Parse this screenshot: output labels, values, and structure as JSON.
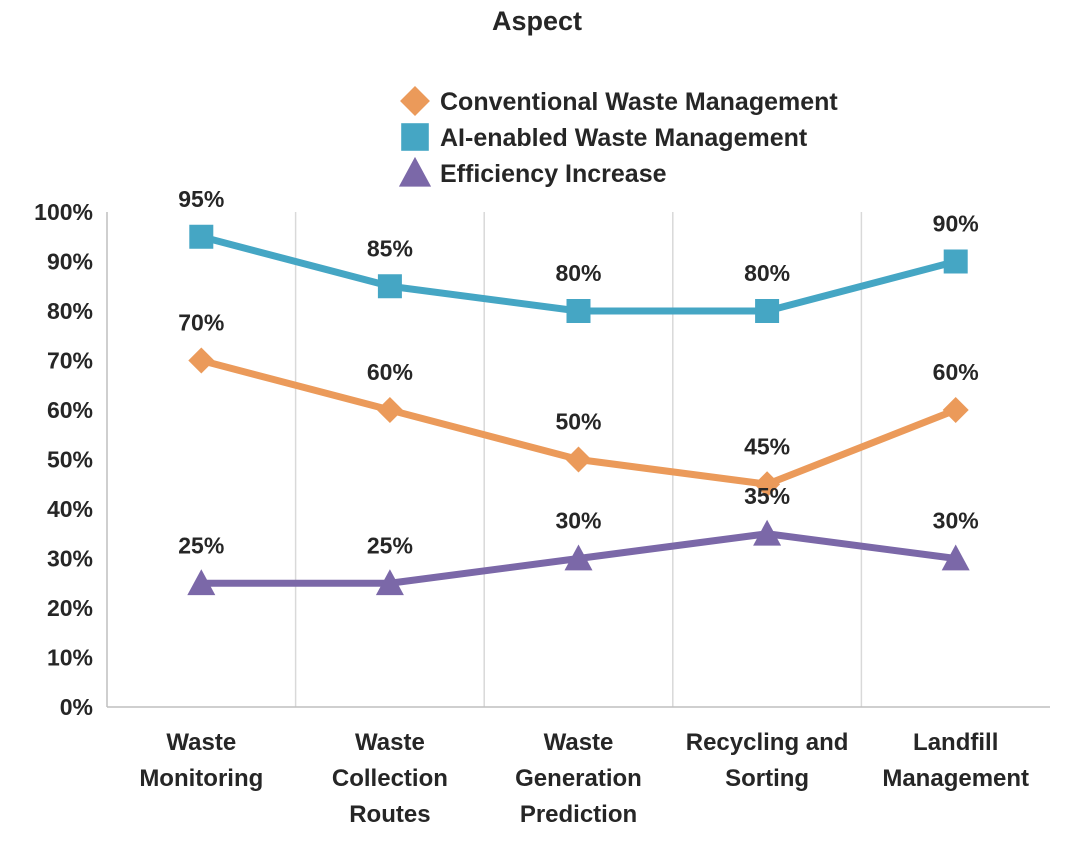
{
  "chart_data": {
    "type": "line",
    "title": "Aspect",
    "xlabel": "",
    "ylabel": "",
    "categories": [
      [
        "Waste",
        "Monitoring"
      ],
      [
        "Waste",
        "Collection",
        "Routes"
      ],
      [
        "Waste",
        "Generation",
        "Prediction"
      ],
      [
        "Recycling and",
        "Sorting"
      ],
      [
        "Landfill",
        "Management"
      ]
    ],
    "ylim": [
      0,
      100
    ],
    "yticks": [
      "0%",
      "10%",
      "20%",
      "30%",
      "40%",
      "50%",
      "60%",
      "70%",
      "80%",
      "90%",
      "100%"
    ],
    "grid": "vertical",
    "legend_position": "top",
    "series": [
      {
        "name": "Conventional Waste Management",
        "color": "#EB9A5A",
        "marker": "diamond",
        "values": [
          70,
          60,
          50,
          45,
          60
        ],
        "labels": [
          "70%",
          "60%",
          "50%",
          "45%",
          "60%"
        ]
      },
      {
        "name": "AI-enabled Waste Management",
        "color": "#45A6C4",
        "marker": "square",
        "values": [
          95,
          85,
          80,
          80,
          90
        ],
        "labels": [
          "95%",
          "85%",
          "80%",
          "80%",
          "90%"
        ]
      },
      {
        "name": "Efficiency Increase",
        "color": "#7B68A8",
        "marker": "triangle",
        "values": [
          25,
          25,
          30,
          35,
          30
        ],
        "labels": [
          "25%",
          "25%",
          "30%",
          "35%",
          "30%"
        ]
      }
    ]
  }
}
